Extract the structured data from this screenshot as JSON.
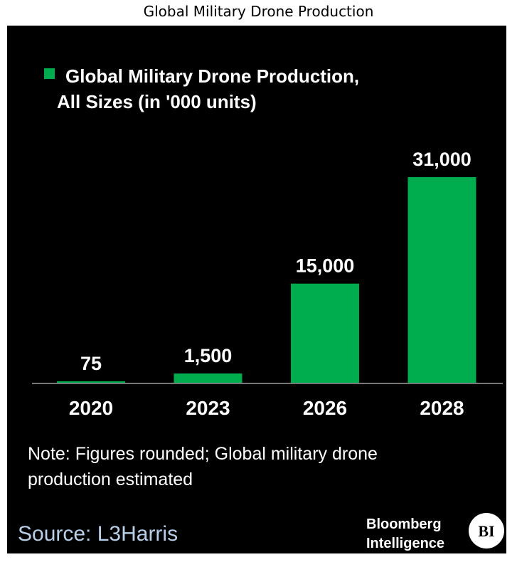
{
  "chart_data": {
    "type": "bar",
    "title": "Global Military Drone Production",
    "legend": [
      "Global Military Drone Production,",
      "All Sizes (in '000 units)"
    ],
    "legend_placement": "top-left",
    "categories": [
      "2020",
      "2023",
      "2026",
      "2028"
    ],
    "values": [
      75,
      1500,
      15000,
      31000
    ],
    "value_labels": [
      "75",
      "1,500",
      "15,000",
      "31,000"
    ],
    "ylim": [
      0,
      31000
    ],
    "grid": false,
    "bar_color": "#00ad4e",
    "background": "#000000",
    "note": [
      "Note: Figures rounded; Global military drone",
      "production estimated"
    ],
    "source": "Source: L3Harris",
    "branding": [
      "Bloomberg",
      "Intelligence"
    ],
    "logo_text": "BI"
  }
}
